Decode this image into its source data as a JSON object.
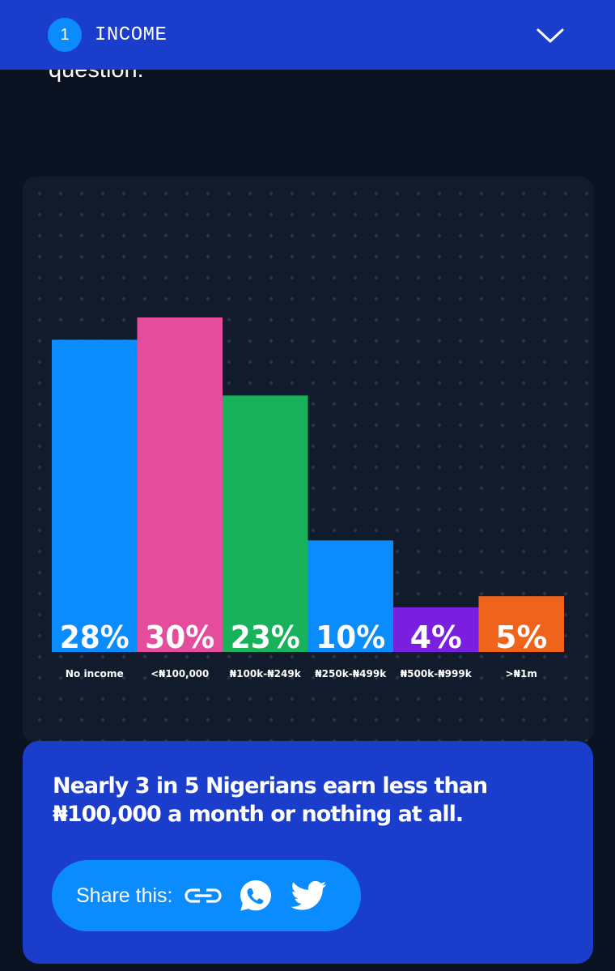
{
  "header": {
    "step_number": "1",
    "title": "INCOME"
  },
  "intro": {
    "visible_text": "question:"
  },
  "chart_data": {
    "type": "bar",
    "categories": [
      "No income",
      "<₦100,000",
      "₦100k-₦249k",
      "₦250k-₦499k",
      "₦500k-₦999k",
      ">₦1m"
    ],
    "values": [
      28,
      30,
      23,
      10,
      4,
      5
    ],
    "value_labels": [
      "28%",
      "30%",
      "23%",
      "10%",
      "4%",
      "5%"
    ],
    "bar_colors": [
      "#0a8cff",
      "#e54c9b",
      "#17b25a",
      "#0a8cff",
      "#7a1fe0",
      "#f0631b"
    ],
    "ylim": [
      0,
      30
    ],
    "grid": false,
    "legend": "none",
    "title": "",
    "xlabel": "",
    "ylabel": ""
  },
  "summary": {
    "text": "Nearly 3 in 5 Nigerians earn less than ₦100,000 a month or nothing at all."
  },
  "share": {
    "label": "Share this:",
    "icons": [
      "link-icon",
      "whatsapp-icon",
      "twitter-icon"
    ]
  },
  "colors": {
    "header_bg": "#1a3ecb",
    "page_bg": "#0b1221",
    "accent": "#0a8cff"
  }
}
